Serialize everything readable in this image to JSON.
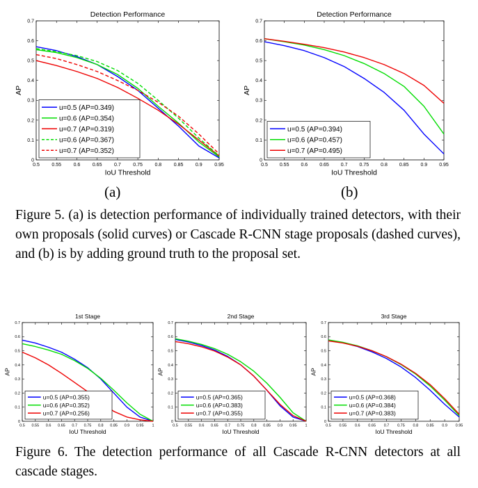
{
  "captions": {
    "fig5": "Figure 5. (a) is detection performance of individually trained detectors, with their own proposals (solid curves) or Cascade R-CNN stage proposals (dashed curves), and (b) is by adding ground truth to the proposal set.",
    "fig6": "Figure 6. The detection performance of all Cascade R-CNN detectors at all cascade stages.",
    "sub_a": "(a)",
    "sub_b": "(b)"
  },
  "colors": {
    "blue": "#0000ff",
    "green": "#00dd00",
    "red": "#ee0000"
  },
  "chart_data": [
    {
      "id": "5a",
      "type": "line",
      "title": "Detection Performance",
      "xlabel": "IoU Threshold",
      "ylabel": "AP",
      "xlim": [
        0.5,
        0.95
      ],
      "ylim": [
        0,
        0.7
      ],
      "xticks": [
        "0.5",
        "0.55",
        "0.6",
        "0.65",
        "0.7",
        "0.75",
        "0.8",
        "0.85",
        "0.9",
        "0.95"
      ],
      "yticks": [
        "0",
        "0.1",
        "0.2",
        "0.3",
        "0.4",
        "0.5",
        "0.6",
        "0.7"
      ],
      "legend": "bottom-left",
      "x": [
        0.5,
        0.55,
        0.6,
        0.65,
        0.7,
        0.75,
        0.8,
        0.85,
        0.9,
        0.95
      ],
      "series": [
        {
          "name": "u=0.5 (AP=0.349)",
          "color": "blue",
          "dash": false,
          "values": [
            0.57,
            0.55,
            0.52,
            0.48,
            0.42,
            0.35,
            0.26,
            0.17,
            0.07,
            0.01
          ]
        },
        {
          "name": "u=0.6 (AP=0.354)",
          "color": "green",
          "dash": false,
          "values": [
            0.555,
            0.54,
            0.515,
            0.48,
            0.43,
            0.36,
            0.27,
            0.185,
            0.09,
            0.015
          ]
        },
        {
          "name": "u=0.7 (AP=0.319)",
          "color": "red",
          "dash": false,
          "values": [
            0.5,
            0.475,
            0.445,
            0.41,
            0.365,
            0.31,
            0.25,
            0.18,
            0.1,
            0.02
          ]
        },
        {
          "name": "u=0.6 (AP=0.367)",
          "color": "green",
          "dash": true,
          "values": [
            0.56,
            0.545,
            0.525,
            0.495,
            0.45,
            0.385,
            0.3,
            0.21,
            0.11,
            0.02
          ]
        },
        {
          "name": "u=0.7 (AP=0.352)",
          "color": "red",
          "dash": true,
          "values": [
            0.53,
            0.51,
            0.48,
            0.445,
            0.4,
            0.35,
            0.29,
            0.22,
            0.13,
            0.03
          ]
        }
      ]
    },
    {
      "id": "5b",
      "type": "line",
      "title": "Detection Performance",
      "xlabel": "IoU Threshold",
      "ylabel": "AP",
      "xlim": [
        0.5,
        0.95
      ],
      "ylim": [
        0,
        0.7
      ],
      "xticks": [
        "0.5",
        "0.55",
        "0.6",
        "0.65",
        "0.7",
        "0.75",
        "0.8",
        "0.85",
        "0.9",
        "0.95"
      ],
      "yticks": [
        "0",
        "0.1",
        "0.2",
        "0.3",
        "0.4",
        "0.5",
        "0.6",
        "0.7"
      ],
      "legend": "bottom-left",
      "x": [
        0.5,
        0.55,
        0.6,
        0.65,
        0.7,
        0.75,
        0.8,
        0.85,
        0.9,
        0.95
      ],
      "series": [
        {
          "name": "u=0.5 (AP=0.394)",
          "color": "blue",
          "dash": false,
          "values": [
            0.595,
            0.575,
            0.55,
            0.515,
            0.47,
            0.41,
            0.34,
            0.25,
            0.13,
            0.03
          ]
        },
        {
          "name": "u=0.6 (AP=0.457)",
          "color": "green",
          "dash": false,
          "values": [
            0.61,
            0.595,
            0.578,
            0.555,
            0.525,
            0.485,
            0.435,
            0.37,
            0.27,
            0.13
          ]
        },
        {
          "name": "u=0.7 (AP=0.495)",
          "color": "red",
          "dash": false,
          "values": [
            0.61,
            0.597,
            0.582,
            0.565,
            0.543,
            0.515,
            0.48,
            0.435,
            0.375,
            0.285
          ]
        }
      ]
    },
    {
      "id": "6-1",
      "type": "line",
      "title": "1st Stage",
      "xlabel": "IoU Threshold",
      "ylabel": "AP",
      "xlim": [
        0.5,
        1.0
      ],
      "ylim": [
        0,
        0.7
      ],
      "xticks": [
        "0.5",
        "0.55",
        "0.6",
        "0.65",
        "0.7",
        "0.75",
        "0.8",
        "0.85",
        "0.9",
        "0.95",
        "1"
      ],
      "yticks": [
        "0",
        "0.1",
        "0.2",
        "0.3",
        "0.4",
        "0.5",
        "0.6",
        "0.7"
      ],
      "legend": "bottom-left",
      "x": [
        0.5,
        0.55,
        0.6,
        0.65,
        0.7,
        0.75,
        0.8,
        0.85,
        0.9,
        0.95,
        1.0
      ],
      "series": [
        {
          "name": "u=0.5 (AP=0.355)",
          "color": "blue",
          "dash": false,
          "values": [
            0.575,
            0.555,
            0.525,
            0.49,
            0.44,
            0.38,
            0.3,
            0.2,
            0.1,
            0.03,
            0.0
          ]
        },
        {
          "name": "u=0.6 (AP=0.352)",
          "color": "green",
          "dash": false,
          "values": [
            0.55,
            0.53,
            0.505,
            0.475,
            0.43,
            0.375,
            0.305,
            0.22,
            0.13,
            0.05,
            0.0
          ]
        },
        {
          "name": "u=0.7 (AP=0.256)",
          "color": "red",
          "dash": false,
          "values": [
            0.49,
            0.45,
            0.4,
            0.34,
            0.275,
            0.21,
            0.14,
            0.07,
            0.03,
            0.01,
            0.0
          ]
        }
      ]
    },
    {
      "id": "6-2",
      "type": "line",
      "title": "2nd Stage",
      "xlabel": "IoU Threshold",
      "ylabel": "AP",
      "xlim": [
        0.5,
        1.0
      ],
      "ylim": [
        0,
        0.7
      ],
      "xticks": [
        "0.5",
        "0.55",
        "0.6",
        "0.65",
        "0.7",
        "0.75",
        "0.8",
        "0.85",
        "0.9",
        "0.95",
        "1"
      ],
      "yticks": [
        "0",
        "0.1",
        "0.2",
        "0.3",
        "0.4",
        "0.5",
        "0.6",
        "0.7"
      ],
      "legend": "bottom-left",
      "x": [
        0.5,
        0.55,
        0.6,
        0.65,
        0.7,
        0.75,
        0.8,
        0.85,
        0.9,
        0.95,
        1.0
      ],
      "series": [
        {
          "name": "u=0.5 (AP=0.365)",
          "color": "blue",
          "dash": false,
          "values": [
            0.58,
            0.562,
            0.537,
            0.505,
            0.46,
            0.4,
            0.32,
            0.22,
            0.11,
            0.03,
            0.0
          ]
        },
        {
          "name": "u=0.6 (AP=0.383)",
          "color": "green",
          "dash": false,
          "values": [
            0.585,
            0.568,
            0.545,
            0.515,
            0.475,
            0.422,
            0.355,
            0.27,
            0.17,
            0.06,
            0.0
          ]
        },
        {
          "name": "u=0.7 (AP=0.355)",
          "color": "red",
          "dash": false,
          "values": [
            0.565,
            0.55,
            0.528,
            0.498,
            0.455,
            0.4,
            0.32,
            0.22,
            0.12,
            0.04,
            0.0
          ]
        }
      ]
    },
    {
      "id": "6-3",
      "type": "line",
      "title": "3rd Stage",
      "xlabel": "IoU Threshold",
      "ylabel": "AP",
      "xlim": [
        0.5,
        0.95
      ],
      "ylim": [
        0,
        0.7
      ],
      "xticks": [
        "0.5",
        "0.55",
        "0.6",
        "0.65",
        "0.7",
        "0.75",
        "0.8",
        "0.85",
        "0.9",
        "0.95"
      ],
      "yticks": [
        "0",
        "0.1",
        "0.2",
        "0.3",
        "0.4",
        "0.5",
        "0.6",
        "0.7"
      ],
      "legend": "bottom-left",
      "x": [
        0.5,
        0.55,
        0.6,
        0.65,
        0.7,
        0.75,
        0.8,
        0.85,
        0.9,
        0.95
      ],
      "series": [
        {
          "name": "u=0.5 (AP=0.368)",
          "color": "blue",
          "dash": false,
          "values": [
            0.575,
            0.557,
            0.53,
            0.492,
            0.445,
            0.385,
            0.31,
            0.22,
            0.12,
            0.03
          ]
        },
        {
          "name": "u=0.6 (AP=0.384)",
          "color": "green",
          "dash": false,
          "values": [
            0.577,
            0.56,
            0.535,
            0.5,
            0.457,
            0.402,
            0.335,
            0.25,
            0.15,
            0.04
          ]
        },
        {
          "name": "u=0.7 (AP=0.383)",
          "color": "red",
          "dash": false,
          "values": [
            0.57,
            0.555,
            0.532,
            0.5,
            0.458,
            0.405,
            0.34,
            0.26,
            0.16,
            0.05
          ]
        }
      ]
    }
  ]
}
